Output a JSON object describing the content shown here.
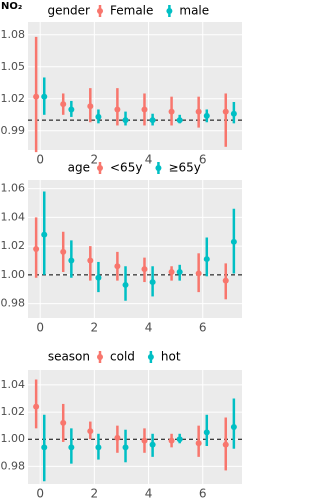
{
  "chart_data": [
    {
      "type": "pointrange",
      "ylabel": "NO₂",
      "legend_title": "gender",
      "x": [
        0,
        1,
        2,
        3,
        4,
        5,
        6,
        7
      ],
      "series": [
        {
          "name": "Female",
          "color": "#F8766D",
          "values": [
            1.022,
            1.015,
            1.013,
            1.01,
            1.01,
            1.008,
            1.008,
            1.008
          ],
          "low": [
            0.97,
            1.005,
            0.998,
            0.995,
            0.995,
            0.995,
            0.993,
            0.975
          ],
          "high": [
            1.078,
            1.025,
            1.03,
            1.03,
            1.025,
            1.022,
            1.022,
            1.025
          ]
        },
        {
          "name": "male",
          "color": "#00BFC4",
          "values": [
            1.022,
            1.01,
            1.003,
            1.0,
            1.0,
            1.0,
            1.004,
            1.006
          ],
          "low": [
            1.005,
            1.003,
            0.997,
            0.995,
            0.995,
            0.997,
            0.998,
            0.997
          ],
          "high": [
            1.04,
            1.018,
            1.01,
            1.008,
            1.006,
            1.005,
            1.01,
            1.017
          ]
        }
      ],
      "xlim": [
        -0.45,
        7.45
      ],
      "xticks": [
        0,
        2,
        4,
        6
      ],
      "ylim": [
        0.972,
        1.092
      ],
      "yticks": [
        0.99,
        1.02,
        1.05,
        1.08
      ],
      "refline": 1,
      "grid": true
    },
    {
      "type": "pointrange",
      "legend_title": "age",
      "x": [
        0,
        1,
        2,
        3,
        4,
        5,
        6,
        7
      ],
      "series": [
        {
          "name": "<65y",
          "color": "#F8766D",
          "values": [
            1.018,
            1.016,
            1.01,
            1.006,
            1.004,
            1.002,
            1.001,
            0.996
          ],
          "low": [
            0.998,
            1.002,
            0.996,
            0.996,
            0.995,
            0.996,
            0.988,
            0.983
          ],
          "high": [
            1.04,
            1.03,
            1.02,
            1.016,
            1.012,
            1.006,
            1.015,
            1.008
          ]
        },
        {
          "name": "≥65y",
          "color": "#00BFC4",
          "values": [
            1.028,
            1.01,
            0.998,
            0.993,
            0.995,
            1.002,
            1.011,
            1.023
          ],
          "low": [
            1.0,
            0.998,
            0.988,
            0.982,
            0.985,
            0.996,
            0.999,
            1.001
          ],
          "high": [
            1.058,
            1.024,
            1.009,
            1.006,
            1.006,
            1.007,
            1.026,
            1.046
          ]
        }
      ],
      "xlim": [
        -0.45,
        7.45
      ],
      "xticks": [
        0,
        2,
        4,
        6
      ],
      "ylim": [
        0.97,
        1.066
      ],
      "yticks": [
        0.98,
        {
          "value": 1,
          "label": "1.00"
        },
        1.02,
        1.04,
        1.06
      ],
      "refline": 1,
      "grid": true
    },
    {
      "type": "pointrange",
      "legend_title": "season",
      "x": [
        0,
        1,
        2,
        3,
        4,
        5,
        6,
        7
      ],
      "series": [
        {
          "name": "cold",
          "color": "#F8766D",
          "values": [
            1.024,
            1.012,
            1.006,
            1.001,
            0.999,
            0.999,
            0.997,
            0.996
          ],
          "low": [
            1.008,
            0.998,
            1.0,
            0.99,
            0.99,
            0.994,
            0.987,
            0.977
          ],
          "high": [
            1.044,
            1.026,
            1.013,
            1.01,
            1.008,
            1.004,
            1.01,
            1.016
          ]
        },
        {
          "name": "hot",
          "color": "#00BFC4",
          "values": [
            0.994,
            0.994,
            0.994,
            0.994,
            0.996,
            1.0,
            1.005,
            1.009
          ],
          "low": [
            0.969,
            0.982,
            0.985,
            0.983,
            0.987,
            0.997,
            0.995,
            0.993
          ],
          "high": [
            1.018,
            1.008,
            1.004,
            1.007,
            1.004,
            1.004,
            1.018,
            1.03
          ]
        }
      ],
      "xlim": [
        -0.45,
        7.45
      ],
      "xticks": [
        0,
        2,
        4,
        6
      ],
      "ylim": [
        0.967,
        1.051
      ],
      "yticks": [
        0.98,
        {
          "value": 1,
          "label": "1.00"
        },
        1.02,
        1.04
      ],
      "refline": 1,
      "grid": true
    }
  ]
}
